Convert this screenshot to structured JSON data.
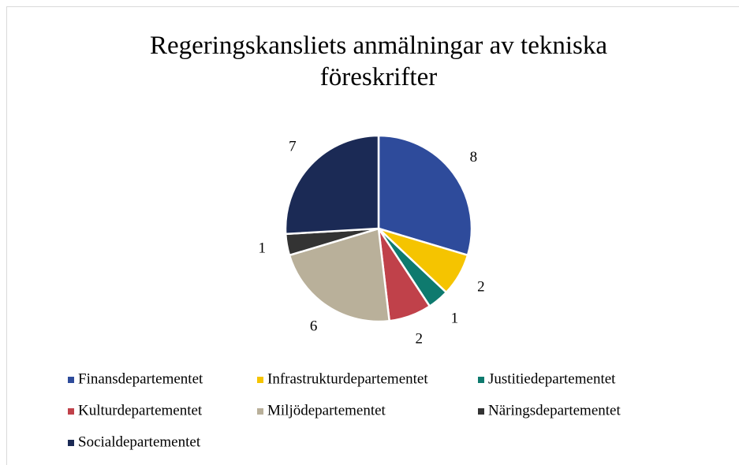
{
  "chart_data": {
    "type": "pie",
    "title": "Regeringskansliets anmälningar av tekniska föreskrifter",
    "categories": [
      "Finansdepartementet",
      "Infrastrukturdepartementet",
      "Justitiedepartementet",
      "Kulturdepartementet",
      "Miljödepartementet",
      "Näringsdepartementet",
      "Socialdepartementet"
    ],
    "values": [
      8,
      2,
      1,
      2,
      6,
      1,
      7
    ],
    "colors": [
      "#2e4b9b",
      "#f5c400",
      "#0e7a6e",
      "#c0414a",
      "#b9b09a",
      "#333333",
      "#1b2a55"
    ],
    "legend": "bottom"
  }
}
